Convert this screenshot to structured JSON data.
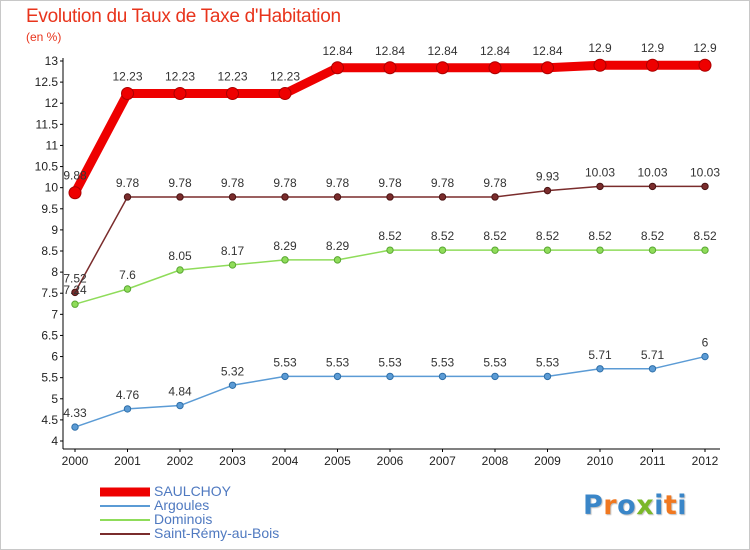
{
  "title": "Evolution du Taux de Taxe d'Habitation",
  "unit_label": "(en %)",
  "logo": {
    "letters": [
      "P",
      "r",
      "o",
      "x",
      "i",
      "t",
      "i"
    ],
    "colors": [
      "#3a86c8",
      "#f07820",
      "#3a86c8",
      "#7ab828",
      "#3a86c8",
      "#f07820",
      "#3a86c8"
    ]
  },
  "chart_data": {
    "type": "line",
    "title": "Evolution du Taux de Taxe d'Habitation",
    "ylabel": "(en %)",
    "xlabel": "",
    "ylim": [
      4,
      13
    ],
    "ytick_step": 0.5,
    "grid": false,
    "x": [
      2000,
      2001,
      2002,
      2003,
      2004,
      2005,
      2006,
      2007,
      2008,
      2009,
      2010,
      2011,
      2012
    ],
    "series": [
      {
        "name": "SAULCHOY",
        "color": "#ee0000",
        "values": [
          9.88,
          12.23,
          12.23,
          12.23,
          12.23,
          12.84,
          12.84,
          12.84,
          12.84,
          12.84,
          12.9,
          12.9,
          12.9
        ],
        "labels": [
          "9.88",
          "12.23",
          "12.23",
          "12.23",
          "12.23",
          "12.84",
          "12.84",
          "12.84",
          "12.84",
          "12.84",
          "12.9",
          "12.9",
          "12.9"
        ]
      },
      {
        "name": "Argoules",
        "color": "#5b9bd5",
        "values": [
          4.33,
          4.76,
          4.84,
          5.32,
          5.53,
          5.53,
          5.53,
          5.53,
          5.53,
          5.53,
          5.71,
          5.71,
          6
        ],
        "labels": [
          "4.33",
          "4.76",
          "4.84",
          "5.32",
          "5.53",
          "5.53",
          "5.53",
          "5.53",
          "5.53",
          "5.53",
          "5.71",
          "5.71",
          "6"
        ]
      },
      {
        "name": "Dominois",
        "color": "#8fdc5a",
        "values": [
          7.24,
          7.6,
          8.05,
          8.17,
          8.29,
          8.29,
          8.52,
          8.52,
          8.52,
          8.52,
          8.52,
          8.52,
          8.52
        ],
        "labels": [
          "7.24",
          "7.6",
          "8.05",
          "8.17",
          "8.29",
          "8.29",
          "8.52",
          "8.52",
          "8.52",
          "8.52",
          "8.52",
          "8.52",
          "8.52"
        ]
      },
      {
        "name": "Saint-Rémy-au-Bois",
        "color": "#7a2c2c",
        "values": [
          7.52,
          9.78,
          9.78,
          9.78,
          9.78,
          9.78,
          9.78,
          9.78,
          9.78,
          9.93,
          10.03,
          10.03,
          10.03
        ],
        "labels": [
          "7.52",
          "9.78",
          "9.78",
          "9.78",
          "9.78",
          "9.78",
          "9.78",
          "9.78",
          "9.78",
          "9.93",
          "10.03",
          "10.03",
          "10.03"
        ]
      }
    ],
    "legend": {
      "position": "bottom-left"
    }
  }
}
